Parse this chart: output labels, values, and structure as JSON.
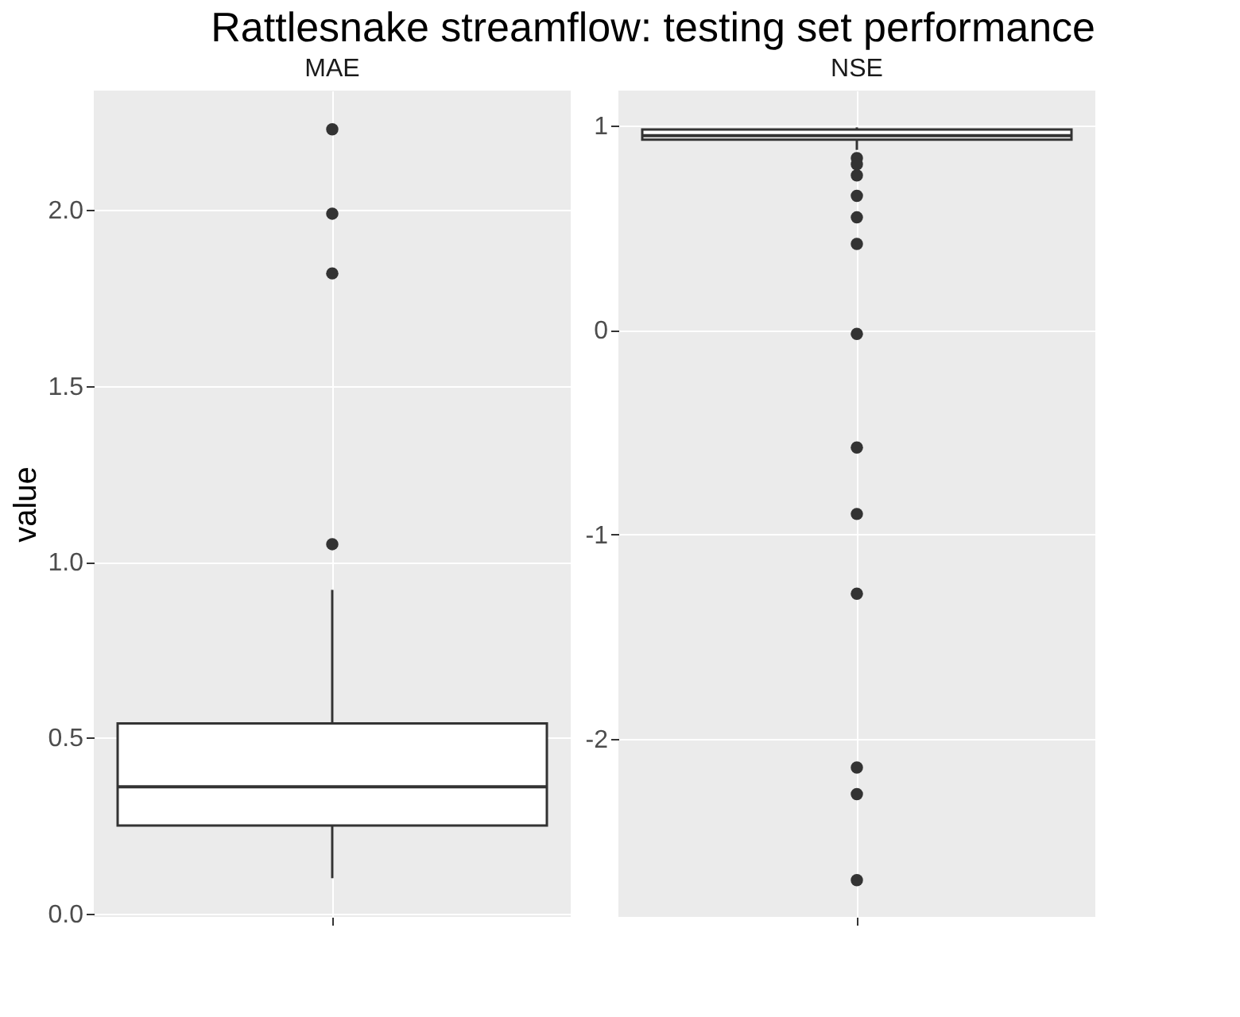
{
  "chart_data": [
    {
      "type": "box",
      "title": "Rattlesnake streamflow: testing set performance",
      "subtitle": "MAE",
      "ylabel": "value",
      "categories": [
        null
      ],
      "ylim": [
        -0.01,
        2.34
      ],
      "yticks": [
        {
          "value": 0,
          "label": "0.0"
        },
        0.5,
        {
          "value": 1,
          "label": "1.0"
        },
        1.5,
        {
          "value": 2,
          "label": "2.0"
        }
      ],
      "grid": true,
      "tick_labels": "y",
      "boxes": [
        {
          "low": 0.1,
          "q1": 0.25,
          "median": 0.36,
          "q3": 0.54,
          "high": 0.92,
          "outliers": [
            1.05,
            1.82,
            1.99,
            2.23
          ]
        }
      ]
    },
    {
      "type": "box",
      "subtitle": "NSE",
      "categories": [
        null
      ],
      "ylim": [
        -2.87,
        1.17
      ],
      "yticks": [
        {
          "value": -2,
          "label": "-2"
        },
        {
          "value": -1,
          "label": "-1"
        },
        {
          "value": 0,
          "label": "0"
        },
        {
          "value": 1,
          "label": "1"
        }
      ],
      "grid": true,
      "tick_labels": "y",
      "boxes": [
        {
          "low": 0.88,
          "q1": 0.93,
          "median": 0.95,
          "q3": 0.98,
          "high": 0.99,
          "outliers": [
            0.84,
            0.81,
            0.755,
            0.655,
            0.55,
            0.42,
            -0.02,
            -0.575,
            -0.9,
            -1.29,
            -2.14,
            -2.27,
            -2.69
          ]
        }
      ]
    }
  ]
}
